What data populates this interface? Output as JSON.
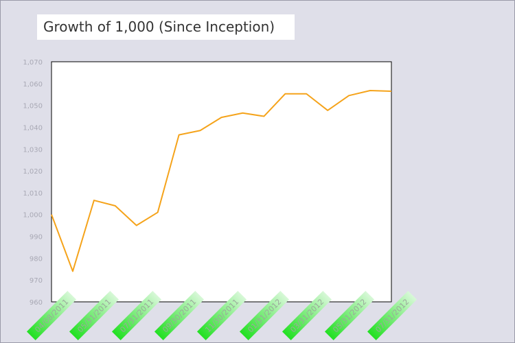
{
  "title": "Growth of 1,000 (Since Inception)",
  "colors": {
    "background": "#dfdfe9",
    "plot_background": "#ffffff",
    "line": "#f5a31a",
    "tick_label_bg": "#3ee83e"
  },
  "chart_data": {
    "type": "line",
    "title": "Growth of 1,000 (Since Inception)",
    "xlabel": "",
    "ylabel": "",
    "ylim": [
      960,
      1070
    ],
    "yticks": [
      960,
      970,
      980,
      990,
      1000,
      1010,
      1020,
      1030,
      1040,
      1050,
      1060,
      1070
    ],
    "ytick_labels": [
      "960",
      "970",
      "980",
      "990",
      "1,000",
      "1,010",
      "1,020",
      "1,030",
      "1,040",
      "1,050",
      "1,060",
      "1,070"
    ],
    "xtick_labels": [
      "04/08/2011",
      "05/31/2011",
      "07/31/2011",
      "09/30/2011",
      "11/30/2011",
      "01/31/2012",
      "03/31/2012",
      "05/31/2012",
      "07/31/2012"
    ],
    "grid": false,
    "legend": "none",
    "series": [
      {
        "values": [
          1000,
          974,
          1006.5,
          1004,
          995,
          1001,
          1036.5,
          1038.5,
          1044.5,
          1046.5,
          1045,
          1055.3,
          1055.3,
          1047.7,
          1054.5,
          1056.8,
          1056.5
        ]
      }
    ]
  }
}
